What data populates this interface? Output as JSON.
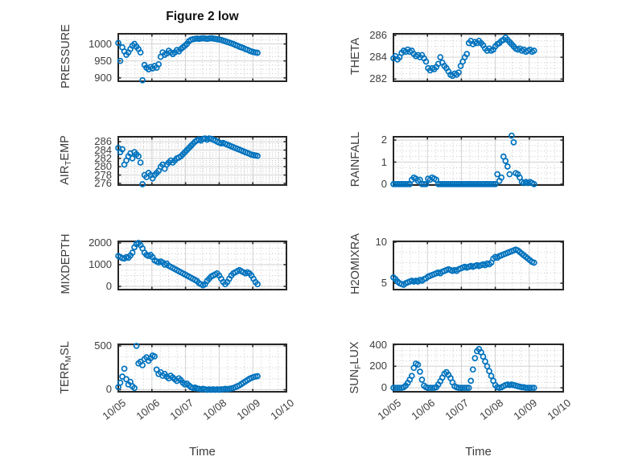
{
  "title": "Figure 2 low",
  "xlabel": "Time",
  "colors": {
    "marker": "#0072BD",
    "axis": "#262626",
    "grid_major": "#d2d2d2",
    "grid_minor": "#bfbfbf",
    "label": "#3d3d3d",
    "title": "#111111"
  },
  "x_ticks": [
    "10/05",
    "10/06",
    "10/07",
    "10/08",
    "10/09",
    "10/10"
  ],
  "chart_data": [
    {
      "type": "scatter",
      "name": "PRESSURE",
      "ylabel_parts": [
        {
          "t": "PRESSURE",
          "sub": false
        }
      ],
      "grid": {
        "row": 0,
        "col": 0
      },
      "yticks": [
        900,
        950,
        1000
      ],
      "ylim": [
        890,
        1030
      ],
      "xlim": [
        0,
        5
      ],
      "x_start": 0,
      "x_step": 0.06,
      "values": [
        1003,
        950,
        990,
        978,
        968,
        975,
        985,
        995,
        1000,
        992,
        985,
        975,
        893,
        938,
        930,
        925,
        932,
        928,
        935,
        930,
        940,
        962,
        975,
        968,
        972,
        980,
        975,
        970,
        975,
        982,
        978,
        985,
        990,
        995,
        1000,
        1008,
        1012,
        1014,
        1015,
        1016,
        1015,
        1016,
        1017,
        1016,
        1015,
        1016,
        1017,
        1016,
        1015,
        1014,
        1013,
        1012,
        1010,
        1008,
        1006,
        1004,
        1002,
        1000,
        997,
        995,
        992,
        990,
        988,
        985,
        983,
        980,
        978,
        976,
        975,
        974
      ]
    },
    {
      "type": "scatter",
      "name": "THETA",
      "ylabel_parts": [
        {
          "t": "THETA",
          "sub": false
        }
      ],
      "grid": {
        "row": 0,
        "col": 1
      },
      "yticks": [
        282,
        284,
        286
      ],
      "ylim": [
        281.8,
        286.15
      ],
      "xlim": [
        0,
        5
      ],
      "x_start": 0,
      "x_step": 0.06,
      "values": [
        283.9,
        284.1,
        283.8,
        284.0,
        284.4,
        284.6,
        284.5,
        284.7,
        284.5,
        284.6,
        284.3,
        284.1,
        284.2,
        284.0,
        284.2,
        283.9,
        283.6,
        283.0,
        282.8,
        283.0,
        282.9,
        283.1,
        283.4,
        284.0,
        283.5,
        283.2,
        283.0,
        282.7,
        282.4,
        282.3,
        282.5,
        282.4,
        282.6,
        283.2,
        283.6,
        284.0,
        284.3,
        285.3,
        285.5,
        285.2,
        285.4,
        285.3,
        285.5,
        285.3,
        285.1,
        284.8,
        284.6,
        284.8,
        284.6,
        284.7,
        285.0,
        285.2,
        285.3,
        285.5,
        285.6,
        285.8,
        285.6,
        285.4,
        285.2,
        285.0,
        284.8,
        284.7,
        284.8,
        284.6,
        284.7,
        284.5,
        284.6,
        284.7,
        284.5,
        284.6
      ]
    },
    {
      "type": "scatter",
      "name": "AIR_TEMP",
      "ylabel_parts": [
        {
          "t": "AIR",
          "sub": false
        },
        {
          "t": "T",
          "sub": true
        },
        {
          "t": "EMP",
          "sub": false
        }
      ],
      "grid": {
        "row": 1,
        "col": 0
      },
      "yticks": [
        276,
        278,
        280,
        282,
        284,
        286
      ],
      "ylim": [
        275.6,
        287.2
      ],
      "xlim": [
        0,
        5
      ],
      "x_start": 0,
      "x_step": 0.06,
      "values": [
        284.5,
        283.5,
        284.2,
        280.5,
        281.5,
        282.5,
        283.2,
        282.0,
        283.5,
        283.0,
        282.5,
        281.0,
        275.8,
        278.0,
        277.5,
        278.5,
        278.0,
        277.2,
        278.0,
        278.5,
        279.0,
        280.0,
        280.5,
        279.5,
        280.5,
        281.0,
        281.5,
        281.0,
        281.5,
        282.0,
        282.2,
        282.5,
        283.0,
        283.5,
        284.0,
        284.5,
        285.0,
        285.5,
        286.0,
        286.3,
        286.5,
        286.3,
        286.7,
        286.8,
        286.5,
        286.8,
        286.7,
        286.5,
        286.3,
        286.0,
        285.8,
        285.6,
        285.7,
        285.5,
        285.3,
        285.1,
        284.9,
        284.7,
        284.5,
        284.3,
        284.1,
        283.9,
        283.7,
        283.5,
        283.3,
        283.1,
        282.9,
        282.8,
        282.7,
        282.6
      ]
    },
    {
      "type": "scatter",
      "name": "RAINFALL",
      "ylabel_parts": [
        {
          "t": "RAINFALL",
          "sub": false
        }
      ],
      "grid": {
        "row": 1,
        "col": 1
      },
      "yticks": [
        0,
        1,
        2
      ],
      "ylim": [
        -0.04,
        2.15
      ],
      "xlim": [
        0,
        5
      ],
      "x_start": 0,
      "x_step": 0.06,
      "values": [
        0,
        0,
        0,
        0,
        0,
        0,
        0,
        0,
        0,
        0.2,
        0.3,
        0.25,
        0.15,
        0.2,
        0,
        0,
        0,
        0.25,
        0.2,
        0.3,
        0.25,
        0.2,
        0,
        0,
        0,
        0,
        0,
        0,
        0,
        0,
        0,
        0,
        0,
        0,
        0,
        0,
        0,
        0,
        0,
        0,
        0,
        0,
        0,
        0,
        0,
        0,
        0,
        0,
        0,
        0,
        0,
        0.45,
        0.15,
        0.3,
        1.25,
        1.05,
        0.8,
        0.45,
        2.2,
        1.9,
        0.5,
        0.45,
        0.3,
        0.1,
        0.05,
        0.1,
        0.05,
        0.1,
        0.05,
        0
      ]
    },
    {
      "type": "scatter",
      "name": "MIXDEPTH",
      "ylabel_parts": [
        {
          "t": "MIXDEPTH",
          "sub": false
        }
      ],
      "grid": {
        "row": 2,
        "col": 0
      },
      "yticks": [
        0,
        1000,
        2000
      ],
      "ylim": [
        -148,
        2074
      ],
      "xlim": [
        0,
        5
      ],
      "x_start": 0,
      "x_step": 0.06,
      "values": [
        1400,
        1350,
        1300,
        1280,
        1350,
        1320,
        1420,
        1550,
        1800,
        1950,
        2000,
        1900,
        1750,
        1550,
        1450,
        1400,
        1450,
        1350,
        1200,
        1150,
        1100,
        1150,
        1100,
        1000,
        1050,
        950,
        900,
        850,
        800,
        750,
        700,
        650,
        600,
        550,
        500,
        450,
        400,
        350,
        300,
        250,
        150,
        100,
        50,
        100,
        250,
        350,
        450,
        500,
        550,
        600,
        500,
        350,
        200,
        100,
        200,
        350,
        500,
        600,
        650,
        700,
        750,
        700,
        650,
        600,
        650,
        600,
        500,
        350,
        200,
        100
      ]
    },
    {
      "type": "scatter",
      "name": "H2OMIXRA",
      "ylabel_parts": [
        {
          "t": "H2OMIXRA",
          "sub": false
        }
      ],
      "grid": {
        "row": 2,
        "col": 1
      },
      "yticks": [
        5,
        10
      ],
      "ylim": [
        4.22,
        10.1
      ],
      "xlim": [
        0,
        5
      ],
      "x_start": 0,
      "x_step": 0.06,
      "values": [
        5.7,
        5.5,
        5.2,
        5.0,
        4.9,
        4.8,
        5.0,
        5.1,
        5.2,
        5.3,
        5.2,
        5.3,
        5.2,
        5.4,
        5.3,
        5.5,
        5.6,
        5.8,
        5.9,
        6.0,
        6.1,
        6.2,
        6.3,
        6.2,
        6.4,
        6.5,
        6.6,
        6.7,
        6.6,
        6.5,
        6.6,
        6.5,
        6.7,
        6.8,
        6.9,
        7.0,
        6.9,
        7.0,
        7.1,
        7.0,
        7.1,
        7.2,
        7.1,
        7.2,
        7.3,
        7.2,
        7.4,
        7.3,
        7.5,
        8.0,
        8.2,
        8.1,
        8.3,
        8.4,
        8.5,
        8.6,
        8.7,
        8.8,
        8.9,
        9.0,
        9.1,
        9.0,
        8.8,
        8.6,
        8.4,
        8.2,
        8.0,
        7.8,
        7.6,
        7.5
      ]
    },
    {
      "type": "scatter",
      "name": "TERR_MSL",
      "ylabel_parts": [
        {
          "t": "TERR",
          "sub": false
        },
        {
          "t": "M",
          "sub": true
        },
        {
          "t": "SL",
          "sub": false
        }
      ],
      "grid": {
        "row": 3,
        "col": 0
      },
      "yticks": [
        0,
        500
      ],
      "ylim": [
        -23,
        518
      ],
      "xlim": [
        0,
        5
      ],
      "x_start": 0,
      "x_step": 0.06,
      "values": [
        30,
        80,
        150,
        240,
        120,
        60,
        90,
        40,
        20,
        500,
        300,
        320,
        280,
        350,
        370,
        330,
        360,
        390,
        380,
        230,
        180,
        200,
        160,
        180,
        150,
        130,
        160,
        140,
        120,
        100,
        130,
        110,
        80,
        60,
        70,
        50,
        30,
        20,
        25,
        15,
        10,
        5,
        10,
        5,
        0,
        5,
        0,
        5,
        0,
        5,
        0,
        5,
        5,
        10,
        5,
        10,
        15,
        20,
        30,
        40,
        50,
        65,
        80,
        95,
        110,
        125,
        135,
        145,
        150,
        155
      ]
    },
    {
      "type": "scatter",
      "name": "SUN_FLUX",
      "ylabel_parts": [
        {
          "t": "SUN",
          "sub": false
        },
        {
          "t": "F",
          "sub": true
        },
        {
          "t": "LUX",
          "sub": false
        }
      ],
      "grid": {
        "row": 3,
        "col": 1
      },
      "yticks": [
        0,
        200,
        400
      ],
      "ylim": [
        -37,
        404
      ],
      "xlim": [
        0,
        5
      ],
      "x_start": 0,
      "x_step": 0.06,
      "values": [
        0,
        0,
        0,
        0,
        0,
        5,
        20,
        45,
        75,
        110,
        185,
        225,
        215,
        150,
        75,
        20,
        5,
        0,
        0,
        0,
        0,
        5,
        30,
        60,
        95,
        130,
        145,
        120,
        90,
        50,
        15,
        5,
        0,
        0,
        0,
        0,
        0,
        0,
        65,
        170,
        275,
        340,
        360,
        330,
        290,
        245,
        200,
        155,
        110,
        65,
        25,
        5,
        0,
        5,
        15,
        25,
        30,
        25,
        30,
        25,
        20,
        15,
        10,
        5,
        5,
        0,
        0,
        0,
        0,
        0
      ]
    }
  ]
}
